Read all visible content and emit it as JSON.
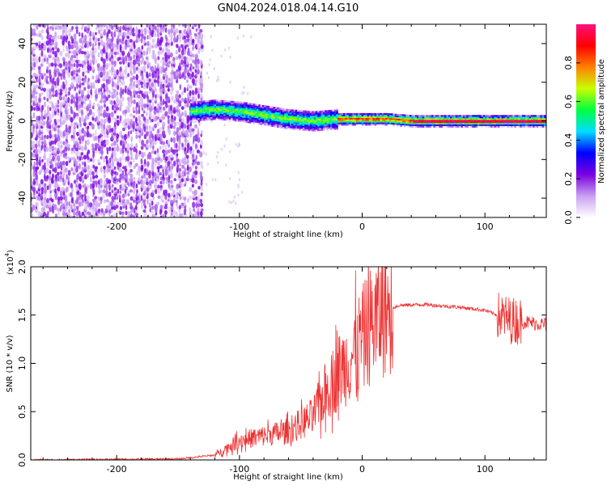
{
  "title": "GN04.2024.018.04.14.G10",
  "chart_data": [
    {
      "type": "heatmap",
      "name": "spectrogram",
      "xlabel": "Height of straight line (km)",
      "ylabel": "Frequency (Hz)",
      "xlim": [
        -270,
        150
      ],
      "ylim": [
        -50,
        50
      ],
      "xticks": [
        -200,
        -100,
        0,
        100
      ],
      "yticks": [
        -40,
        -20,
        0,
        20,
        40
      ],
      "signal_band_center_hz": [
        {
          "x": -140,
          "y": 5
        },
        {
          "x": -120,
          "y": 6
        },
        {
          "x": -100,
          "y": 5
        },
        {
          "x": -80,
          "y": 3
        },
        {
          "x": -60,
          "y": 1
        },
        {
          "x": -40,
          "y": 0
        },
        {
          "x": -20,
          "y": 1
        },
        {
          "x": 0,
          "y": 1
        },
        {
          "x": 20,
          "y": 1
        },
        {
          "x": 40,
          "y": 0
        },
        {
          "x": 80,
          "y": 0
        },
        {
          "x": 120,
          "y": 0
        },
        {
          "x": 150,
          "y": 0
        }
      ],
      "colorbar": {
        "label": "Normalized spectral amplitude",
        "range": [
          0,
          1
        ],
        "ticks": [
          "0.0",
          "0.2",
          "0.4",
          "0.6",
          "0.8"
        ],
        "colors": [
          "#ffffff",
          "#c9a0f0",
          "#7a00e0",
          "#0000ff",
          "#00ddff",
          "#00ff40",
          "#c8ff00",
          "#ff8000",
          "#ff0000",
          "#ff1080"
        ]
      }
    },
    {
      "type": "line",
      "name": "snr",
      "xlabel": "Height of straight line (km)",
      "ylabel": "SNR (10 * v/v)",
      "multiplier": "(x10",
      "multiplier_exp": "4",
      "xlim": [
        -270,
        150
      ],
      "ylim": [
        0,
        2.0
      ],
      "xticks": [
        -200,
        -100,
        0,
        100
      ],
      "yticks": [
        "0.0",
        "0.5",
        "1.0",
        "1.5",
        "2.0"
      ],
      "color": "#ee3333",
      "envelope": [
        {
          "x": -270,
          "y": 0.0
        },
        {
          "x": -150,
          "y": 0.01
        },
        {
          "x": -120,
          "y": 0.05
        },
        {
          "x": -100,
          "y": 0.2
        },
        {
          "x": -80,
          "y": 0.25
        },
        {
          "x": -60,
          "y": 0.3
        },
        {
          "x": -40,
          "y": 0.45
        },
        {
          "x": -30,
          "y": 0.7
        },
        {
          "x": -20,
          "y": 0.9
        },
        {
          "x": -10,
          "y": 1.05
        },
        {
          "x": 0,
          "y": 1.25
        },
        {
          "x": 10,
          "y": 1.45
        },
        {
          "x": 20,
          "y": 1.55
        },
        {
          "x": 30,
          "y": 1.6
        },
        {
          "x": 50,
          "y": 1.61
        },
        {
          "x": 80,
          "y": 1.58
        },
        {
          "x": 100,
          "y": 1.55
        },
        {
          "x": 120,
          "y": 1.45
        },
        {
          "x": 150,
          "y": 1.4
        }
      ]
    }
  ]
}
